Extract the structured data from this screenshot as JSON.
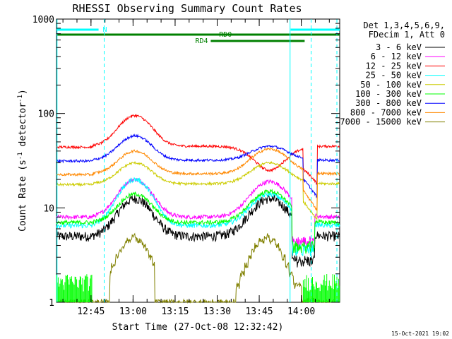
{
  "chart_data": {
    "type": "line",
    "title": "RHESSI Observing Summary Count Rates",
    "xlabel": "Start Time (27-Oct-08 12:32:42)",
    "ylabel_main": "Count Rate (s",
    "ylabel_sup1": "-1",
    "ylabel_mid": " detector",
    "ylabel_sup2": "-1",
    "ylabel_end": ")",
    "y_scale": "log",
    "xlim_minutes": [
      0,
      101
    ],
    "ylim": [
      1,
      1000
    ],
    "x_ticks": [
      {
        "label": "12:45",
        "minute": 12.3
      },
      {
        "label": "13:00",
        "minute": 27.3
      },
      {
        "label": "13:15",
        "minute": 42.3
      },
      {
        "label": "13:30",
        "minute": 57.3
      },
      {
        "label": "13:45",
        "minute": 72.3
      },
      {
        "label": "14:00",
        "minute": 87.3
      }
    ],
    "y_ticks": [
      {
        "label": "1",
        "value": 1
      },
      {
        "label": "10",
        "value": 10
      },
      {
        "label": "100",
        "value": 100
      },
      {
        "label": "1000",
        "value": 1000
      }
    ],
    "legend": {
      "header": [
        "Det 1,3,4,5,6,9,",
        "FDecim 1, Att 0"
      ],
      "placement": "right"
    },
    "series": [
      {
        "name": "3 - 6 keV",
        "color": "#000000",
        "base": 5.0,
        "peak1": 12.5,
        "peak2": 12.5,
        "noise": 0.12,
        "hi": false
      },
      {
        "name": "6 - 12 keV",
        "color": "#ff00ff",
        "base": 8.0,
        "peak1": 20,
        "peak2": 19,
        "noise": 0.05,
        "hi": false
      },
      {
        "name": "12 - 25 keV",
        "color": "#ff0000",
        "base": 45,
        "peak1": 95,
        "peak2": 25,
        "noise": 0.03,
        "hi": true
      },
      {
        "name": "25 - 50 keV",
        "color": "#00ffff",
        "base": 6.5,
        "peak1": 20,
        "peak2": 14,
        "noise": 0.06,
        "hi": false
      },
      {
        "name": "50 - 100 keV",
        "color": "#cccc00",
        "base": 18,
        "peak1": 30,
        "peak2": 30,
        "noise": 0.03,
        "hi": true
      },
      {
        "name": "100 - 300 keV",
        "color": "#00ff00",
        "base": 7,
        "peak1": 14,
        "peak2": 15,
        "noise": 0.05,
        "hi": false
      },
      {
        "name": "300 - 800 keV",
        "color": "#0000ff",
        "base": 32,
        "peak1": 58,
        "peak2": 45,
        "noise": 0.03,
        "hi": true
      },
      {
        "name": "800 - 7000 keV",
        "color": "#ff8800",
        "base": 23,
        "peak1": 40,
        "peak2": 42,
        "noise": 0.03,
        "hi": true
      },
      {
        "name": "7000 - 15000 keV",
        "color": "#808000",
        "base": 1.0,
        "peak1": 3.5,
        "peak2": 3.5,
        "noise": 0.0,
        "hi": false
      }
    ],
    "annotations": {
      "n_label": "N",
      "rd0_label": "RD0",
      "rd4_label": "RD4"
    },
    "footer": "15-Oct-2021 19:02"
  }
}
